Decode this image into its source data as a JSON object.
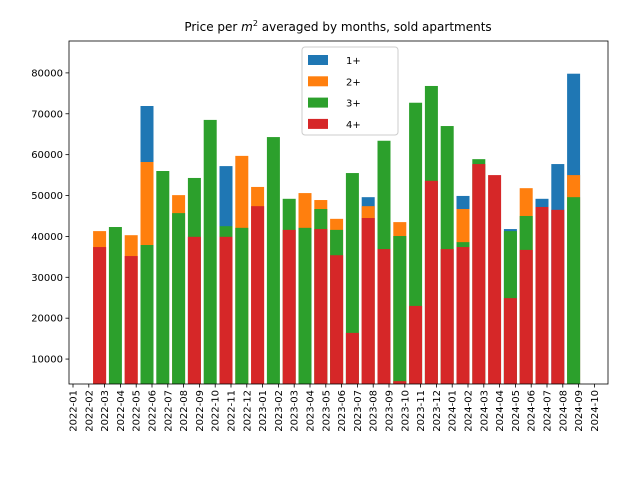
{
  "chart_data": {
    "type": "bar",
    "title": [
      "Price per ",
      "m",
      "2",
      " averaged by months, sold apartments"
    ],
    "categories": [
      "2022-01",
      "2022-02",
      "2022-03",
      "2022-04",
      "2022-05",
      "2022-06",
      "2022-07",
      "2022-08",
      "2022-09",
      "2022-10",
      "2022-11",
      "2022-12",
      "2023-01",
      "2023-02",
      "2023-03",
      "2023-04",
      "2023-05",
      "2023-06",
      "2023-07",
      "2023-08",
      "2023-09",
      "2023-10",
      "2023-11",
      "2023-12",
      "2024-01",
      "2024-02",
      "2024-03",
      "2024-04",
      "2024-05",
      "2024-06",
      "2024-07",
      "2024-08",
      "2024-09",
      "2024-10"
    ],
    "series": [
      {
        "name": "1+",
        "color": "#1f77b4",
        "values": [
          null,
          null,
          null,
          null,
          null,
          71900,
          null,
          null,
          null,
          null,
          57200,
          null,
          null,
          null,
          null,
          null,
          null,
          null,
          null,
          49600,
          null,
          null,
          null,
          null,
          null,
          49900,
          null,
          null,
          41800,
          null,
          49200,
          57700,
          79800,
          null
        ]
      },
      {
        "name": "2+",
        "color": "#ff7f0e",
        "values": [
          null,
          null,
          41300,
          null,
          40300,
          58200,
          null,
          50100,
          null,
          null,
          null,
          59700,
          52100,
          null,
          null,
          50600,
          48900,
          44300,
          null,
          47400,
          null,
          43500,
          null,
          null,
          null,
          46700,
          null,
          null,
          null,
          51800,
          null,
          null,
          55000,
          null
        ]
      },
      {
        "name": "3+",
        "color": "#2ca02c",
        "values": [
          null,
          null,
          null,
          42300,
          null,
          37900,
          56000,
          45700,
          54300,
          68500,
          42500,
          42100,
          null,
          64300,
          49200,
          42100,
          46700,
          41600,
          55500,
          null,
          63400,
          40100,
          72700,
          76800,
          67000,
          38600,
          58900,
          null,
          41300,
          45000,
          null,
          null,
          49600,
          null
        ]
      },
      {
        "name": "4+",
        "color": "#d62728",
        "values": [
          null,
          null,
          37400,
          null,
          35200,
          null,
          null,
          null,
          39900,
          null,
          39900,
          null,
          47400,
          null,
          41600,
          null,
          41800,
          35400,
          16400,
          44500,
          36900,
          4600,
          23000,
          53600,
          36900,
          37400,
          57700,
          55000,
          24900,
          36700,
          47200,
          46500,
          null,
          null
        ]
      }
    ],
    "ylim": [
      3900,
      87800
    ],
    "yticks": [
      10000,
      20000,
      30000,
      40000,
      50000,
      60000,
      70000,
      80000
    ],
    "legend": "upper center"
  }
}
